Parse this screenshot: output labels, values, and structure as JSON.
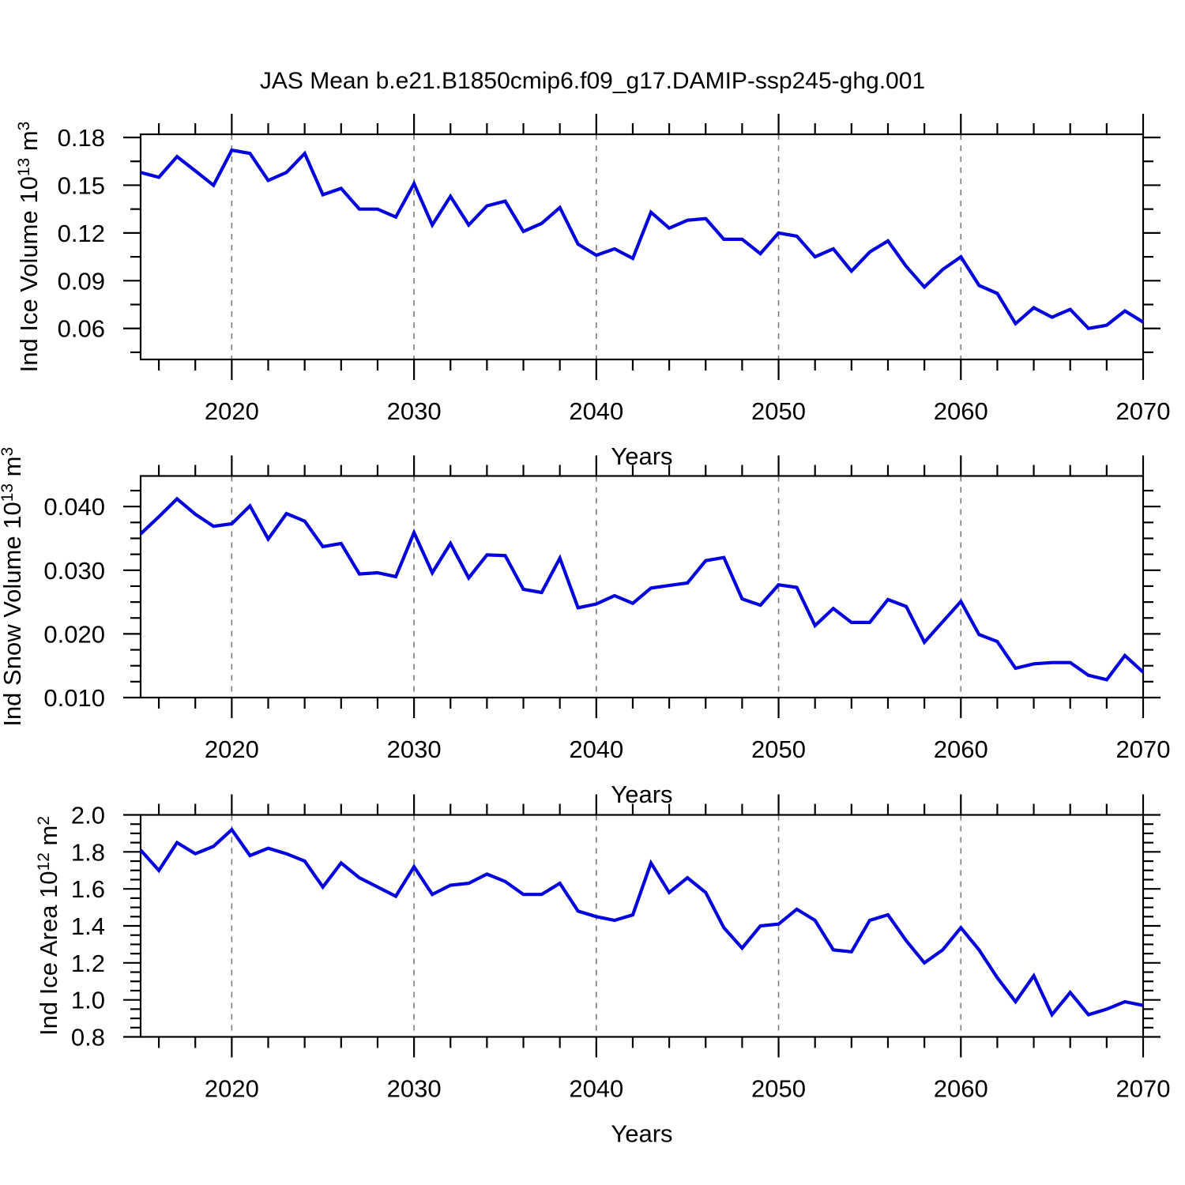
{
  "title": "JAS Mean b.e21.B1850cmip6.f09_g17.DAMIP-ssp245-ghg.001",
  "xlabel": "Years",
  "colors": {
    "line": "#0202dd",
    "grid": "#7a7a7a",
    "axis": "#000000",
    "background": "#ffffff"
  },
  "x_axis": {
    "range": [
      2015,
      2070
    ],
    "major_ticks": [
      2020,
      2030,
      2040,
      2050,
      2060,
      2070
    ],
    "tick_labels": [
      "2020",
      "2030",
      "2040",
      "2050",
      "2060",
      "2070"
    ],
    "minor_step": 2,
    "grid_years": [
      2020,
      2030,
      2040,
      2050,
      2060
    ]
  },
  "chart_data": [
    {
      "type": "line",
      "id": "ice-volume",
      "ylabel": "Ind Ice Volume 10¹³ m³",
      "ylabel_rich": [
        [
          "Ind Ice Volume 10",
          0
        ],
        [
          "13",
          1
        ],
        [
          " m",
          0
        ],
        [
          "3",
          1
        ]
      ],
      "ylim": [
        0.0405,
        0.182
      ],
      "ytick_values": [
        0.06,
        0.09,
        0.12,
        0.15,
        0.18
      ],
      "ytick_labels": [
        "0.06",
        "0.09",
        "0.12",
        "0.15",
        "0.18"
      ],
      "yminor_step": 0.015,
      "x": [
        2015,
        2016,
        2017,
        2018,
        2019,
        2020,
        2021,
        2022,
        2023,
        2024,
        2025,
        2026,
        2027,
        2028,
        2029,
        2030,
        2031,
        2032,
        2033,
        2034,
        2035,
        2036,
        2037,
        2038,
        2039,
        2040,
        2041,
        2042,
        2043,
        2044,
        2045,
        2046,
        2047,
        2048,
        2049,
        2050,
        2051,
        2052,
        2053,
        2054,
        2055,
        2056,
        2057,
        2058,
        2059,
        2060,
        2061,
        2062,
        2063,
        2064,
        2065,
        2066,
        2067,
        2068,
        2069,
        2070
      ],
      "values": [
        0.158,
        0.155,
        0.168,
        0.159,
        0.15,
        0.172,
        0.17,
        0.153,
        0.158,
        0.17,
        0.144,
        0.148,
        0.135,
        0.135,
        0.13,
        0.151,
        0.125,
        0.143,
        0.125,
        0.137,
        0.14,
        0.121,
        0.126,
        0.136,
        0.113,
        0.106,
        0.11,
        0.104,
        0.133,
        0.123,
        0.128,
        0.129,
        0.116,
        0.116,
        0.107,
        0.12,
        0.118,
        0.105,
        0.11,
        0.096,
        0.108,
        0.115,
        0.099,
        0.086,
        0.097,
        0.105,
        0.087,
        0.082,
        0.063,
        0.073,
        0.067,
        0.072,
        0.06,
        0.062,
        0.071,
        0.064
      ]
    },
    {
      "type": "line",
      "id": "snow-volume",
      "ylabel": "Ind Snow Volume 10¹³ m³",
      "ylabel_rich": [
        [
          "Ind Snow Volume 10",
          0
        ],
        [
          "13",
          1
        ],
        [
          " m",
          0
        ],
        [
          "3",
          1
        ]
      ],
      "ylim": [
        0.01,
        0.0448
      ],
      "ytick_values": [
        0.01,
        0.02,
        0.03,
        0.04
      ],
      "ytick_labels": [
        "0.010",
        "0.020",
        "0.030",
        "0.040"
      ],
      "yminor_step": 0.0025,
      "x": [
        2015,
        2016,
        2017,
        2018,
        2019,
        2020,
        2021,
        2022,
        2023,
        2024,
        2025,
        2026,
        2027,
        2028,
        2029,
        2030,
        2031,
        2032,
        2033,
        2034,
        2035,
        2036,
        2037,
        2038,
        2039,
        2040,
        2041,
        2042,
        2043,
        2044,
        2045,
        2046,
        2047,
        2048,
        2049,
        2050,
        2051,
        2052,
        2053,
        2054,
        2055,
        2056,
        2057,
        2058,
        2059,
        2060,
        2061,
        2062,
        2063,
        2064,
        2065,
        2066,
        2067,
        2068,
        2069,
        2070
      ],
      "values": [
        0.0357,
        0.0384,
        0.0412,
        0.0388,
        0.0369,
        0.0373,
        0.0401,
        0.0349,
        0.0389,
        0.0377,
        0.0337,
        0.0342,
        0.0294,
        0.0296,
        0.029,
        0.0359,
        0.0296,
        0.0342,
        0.0288,
        0.0324,
        0.0323,
        0.027,
        0.0265,
        0.0319,
        0.0241,
        0.0247,
        0.026,
        0.0248,
        0.0272,
        0.0276,
        0.028,
        0.0315,
        0.032,
        0.0255,
        0.0245,
        0.0277,
        0.0273,
        0.0213,
        0.024,
        0.0218,
        0.0218,
        0.0254,
        0.0243,
        0.0187,
        0.0219,
        0.0251,
        0.0199,
        0.0188,
        0.0146,
        0.0153,
        0.0155,
        0.0155,
        0.0135,
        0.0128,
        0.0166,
        0.014
      ]
    },
    {
      "type": "line",
      "id": "ice-area",
      "ylabel": "Ind Ice Area 10¹² m²",
      "ylabel_rich": [
        [
          "Ind Ice Area 10",
          0
        ],
        [
          "12",
          1
        ],
        [
          " m",
          0
        ],
        [
          "2",
          1
        ]
      ],
      "ylim": [
        0.8,
        2.0
      ],
      "ytick_values": [
        0.8,
        1.0,
        1.2,
        1.4,
        1.6,
        1.8,
        2.0
      ],
      "ytick_labels": [
        "0.8",
        "1.0",
        "1.2",
        "1.4",
        "1.6",
        "1.8",
        "2.0"
      ],
      "yminor_step": 0.05,
      "x": [
        2015,
        2016,
        2017,
        2018,
        2019,
        2020,
        2021,
        2022,
        2023,
        2024,
        2025,
        2026,
        2027,
        2028,
        2029,
        2030,
        2031,
        2032,
        2033,
        2034,
        2035,
        2036,
        2037,
        2038,
        2039,
        2040,
        2041,
        2042,
        2043,
        2044,
        2045,
        2046,
        2047,
        2048,
        2049,
        2050,
        2051,
        2052,
        2053,
        2054,
        2055,
        2056,
        2057,
        2058,
        2059,
        2060,
        2061,
        2062,
        2063,
        2064,
        2065,
        2066,
        2067,
        2068,
        2069,
        2070
      ],
      "values": [
        1.81,
        1.7,
        1.85,
        1.79,
        1.83,
        1.92,
        1.78,
        1.82,
        1.79,
        1.75,
        1.61,
        1.74,
        1.66,
        1.61,
        1.56,
        1.72,
        1.57,
        1.62,
        1.63,
        1.68,
        1.64,
        1.57,
        1.57,
        1.63,
        1.48,
        1.45,
        1.43,
        1.46,
        1.74,
        1.58,
        1.66,
        1.58,
        1.39,
        1.28,
        1.4,
        1.41,
        1.49,
        1.43,
        1.27,
        1.26,
        1.43,
        1.46,
        1.32,
        1.2,
        1.27,
        1.39,
        1.27,
        1.12,
        0.99,
        1.13,
        0.92,
        1.04,
        0.92,
        0.95,
        0.99,
        0.97
      ]
    }
  ]
}
